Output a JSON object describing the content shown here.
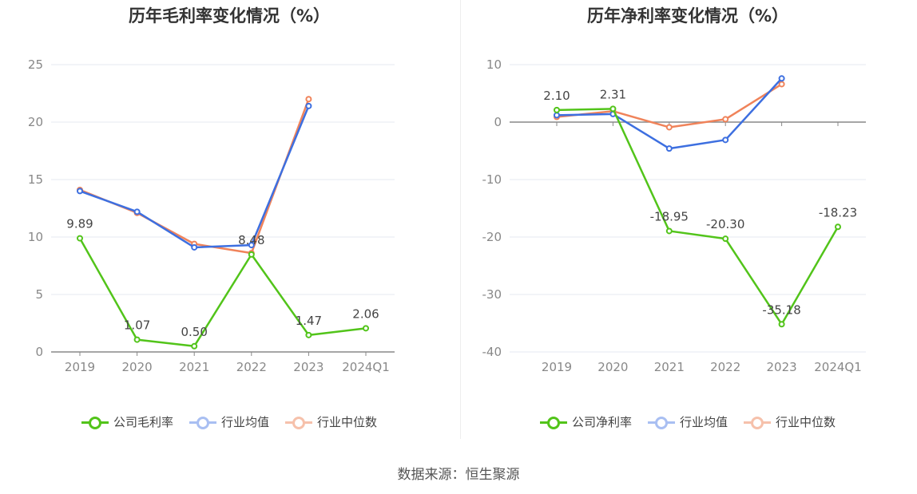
{
  "source": "数据来源：恒生聚源",
  "colors": {
    "company": "#52c41a",
    "avg": "#3d6fe0",
    "median": "#f0835a"
  },
  "chart_data": [
    {
      "type": "line",
      "title": "历年毛利率变化情况（%）",
      "categories": [
        "2019",
        "2020",
        "2021",
        "2022",
        "2023",
        "2024Q1"
      ],
      "ylim": [
        0,
        25
      ],
      "yticks": [
        0,
        5,
        10,
        15,
        20,
        25
      ],
      "grid": true,
      "legend_position": "bottom",
      "series": [
        {
          "name": "公司毛利率",
          "values": [
            9.89,
            1.07,
            0.5,
            8.48,
            1.47,
            2.06
          ],
          "labels": [
            "9.89",
            "1.07",
            "0.50",
            "8.48",
            "1.47",
            "2.06"
          ]
        },
        {
          "name": "行业均值",
          "values": [
            14.0,
            12.2,
            9.1,
            9.3,
            21.4,
            null
          ]
        },
        {
          "name": "行业中位数",
          "values": [
            14.1,
            12.1,
            9.4,
            8.6,
            22.0,
            null
          ]
        }
      ]
    },
    {
      "type": "line",
      "title": "历年净利率变化情况（%）",
      "categories": [
        "2019",
        "2020",
        "2021",
        "2022",
        "2023",
        "2024Q1"
      ],
      "ylim": [
        -40,
        10
      ],
      "yticks": [
        10,
        0,
        -10,
        -20,
        -30,
        -40
      ],
      "grid": true,
      "legend_position": "bottom",
      "series": [
        {
          "name": "公司净利率",
          "values": [
            2.1,
            2.31,
            -18.95,
            -20.3,
            -35.18,
            -18.23
          ],
          "labels": [
            "2.10",
            "2.31",
            "-18.95",
            "-20.30",
            "-35.18",
            "-18.23"
          ]
        },
        {
          "name": "行业均值",
          "values": [
            1.2,
            1.4,
            -4.6,
            -3.1,
            7.6,
            null
          ]
        },
        {
          "name": "行业中位数",
          "values": [
            0.9,
            1.9,
            -0.9,
            0.5,
            6.6,
            null
          ]
        }
      ]
    }
  ]
}
